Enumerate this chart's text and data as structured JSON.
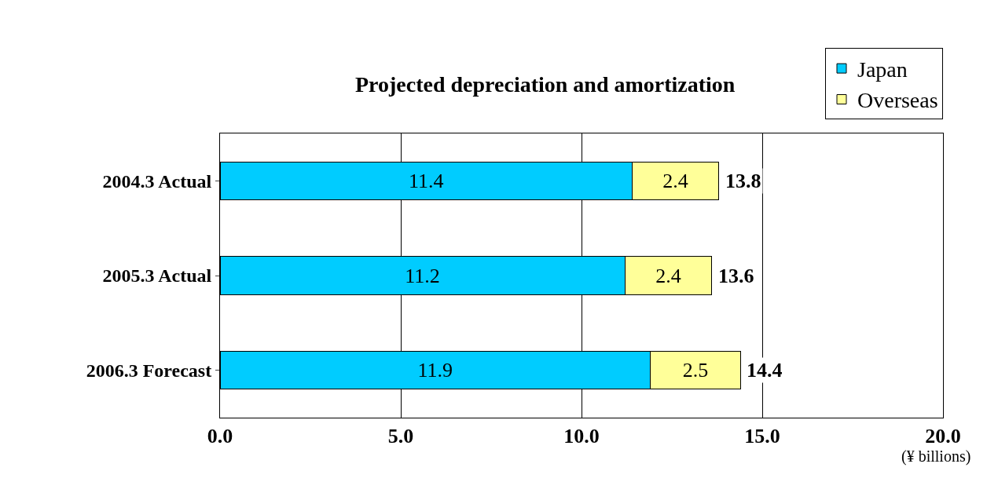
{
  "chart_data": {
    "type": "bar",
    "orientation": "horizontal",
    "stacked": true,
    "title": "Projected depreciation and amortization",
    "xlabel": "(¥ billions)",
    "categories": [
      "2004.3 Actual",
      "2005.3 Actual",
      "2006.3 Forecast"
    ],
    "series": [
      {
        "name": "Japan",
        "color": "#00ccff",
        "values": [
          11.4,
          11.2,
          11.9
        ]
      },
      {
        "name": "Overseas",
        "color": "#ffff99",
        "values": [
          2.4,
          2.4,
          2.5
        ]
      }
    ],
    "totals": [
      "13.8",
      "13.6",
      "14.4"
    ],
    "data_labels": true,
    "xlim": [
      0,
      20
    ],
    "xticks": [
      {
        "value": 0,
        "label": "0.0"
      },
      {
        "value": 5,
        "label": "5.0"
      },
      {
        "value": 10,
        "label": "10.0"
      },
      {
        "value": 15,
        "label": "15.0"
      },
      {
        "value": 20,
        "label": "20.0"
      }
    ],
    "grid": "x",
    "legend": "top right"
  }
}
